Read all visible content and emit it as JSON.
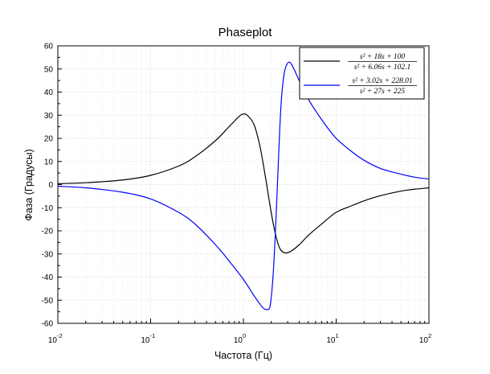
{
  "chart_data": {
    "type": "line",
    "title": "Phaseplot",
    "xlabel": "Частота (Гц)",
    "ylabel": "Фаза (Градусы)",
    "x_scale": "log",
    "xlim": [
      0.01,
      100
    ],
    "ylim": [
      -60,
      60
    ],
    "grid": true,
    "legend_position": "top-right",
    "x_ticks": [
      {
        "base": "10",
        "exp": "-2"
      },
      {
        "base": "10",
        "exp": "-1"
      },
      {
        "base": "10",
        "exp": "0"
      },
      {
        "base": "10",
        "exp": "1"
      },
      {
        "base": "10",
        "exp": "2"
      }
    ],
    "y_ticks": [
      "-60",
      "-50",
      "-40",
      "-30",
      "-20",
      "-10",
      "0",
      "10",
      "20",
      "30",
      "40",
      "50",
      "60"
    ],
    "series": [
      {
        "name_num": "s² + 18s + 100",
        "name_den": "s² + 6.06s + 102.1",
        "color": "#000000",
        "points": [
          [
            0.01,
            0.4
          ],
          [
            0.02,
            0.8
          ],
          [
            0.05,
            2.0
          ],
          [
            0.1,
            4.0
          ],
          [
            0.2,
            8.0
          ],
          [
            0.3,
            12.0
          ],
          [
            0.5,
            19.0
          ],
          [
            0.7,
            25.0
          ],
          [
            0.9,
            29.5
          ],
          [
            1.0,
            30.5
          ],
          [
            1.1,
            30.0
          ],
          [
            1.3,
            26.0
          ],
          [
            1.5,
            17.0
          ],
          [
            1.7,
            5.0
          ],
          [
            1.9,
            -7.0
          ],
          [
            2.1,
            -17.0
          ],
          [
            2.3,
            -24.0
          ],
          [
            2.5,
            -28.0
          ],
          [
            2.8,
            -29.5
          ],
          [
            3.2,
            -29.0
          ],
          [
            4.0,
            -26.0
          ],
          [
            5.0,
            -22.0
          ],
          [
            7.0,
            -17.0
          ],
          [
            10.0,
            -12.0
          ],
          [
            15.0,
            -9.0
          ],
          [
            20.0,
            -7.0
          ],
          [
            30.0,
            -4.8
          ],
          [
            50.0,
            -2.8
          ],
          [
            70.0,
            -2.0
          ],
          [
            100.0,
            -1.4
          ]
        ]
      },
      {
        "name_num": "s² + 3.02s + 228.01",
        "name_den": "s² + 27s + 225",
        "color": "#0000ff",
        "points": [
          [
            0.01,
            -0.7
          ],
          [
            0.02,
            -1.4
          ],
          [
            0.05,
            -3.3
          ],
          [
            0.1,
            -6.2
          ],
          [
            0.2,
            -12.0
          ],
          [
            0.3,
            -17.0
          ],
          [
            0.5,
            -26.0
          ],
          [
            0.7,
            -33.0
          ],
          [
            1.0,
            -41.0
          ],
          [
            1.3,
            -48.0
          ],
          [
            1.6,
            -53.0
          ],
          [
            1.8,
            -54.0
          ],
          [
            1.95,
            -52.0
          ],
          [
            2.1,
            -38.0
          ],
          [
            2.25,
            -14.0
          ],
          [
            2.4,
            13.0
          ],
          [
            2.55,
            35.0
          ],
          [
            2.75,
            48.0
          ],
          [
            3.0,
            52.5
          ],
          [
            3.3,
            52.0
          ],
          [
            4.0,
            45.0
          ],
          [
            5.0,
            37.0
          ],
          [
            7.0,
            28.0
          ],
          [
            10.0,
            20.0
          ],
          [
            15.0,
            14.0
          ],
          [
            20.0,
            10.5
          ],
          [
            30.0,
            7.0
          ],
          [
            50.0,
            4.5
          ],
          [
            70.0,
            3.2
          ],
          [
            100.0,
            2.4
          ]
        ]
      }
    ]
  }
}
